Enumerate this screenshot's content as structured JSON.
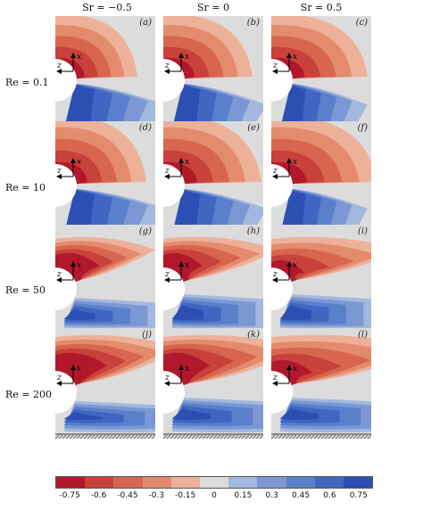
{
  "columns": [
    "Sr = −0.5",
    "Sr = 0",
    "Sr = 0.5"
  ],
  "rows": [
    "Re = 0.1",
    "Re = 10",
    "Re = 50",
    "Re = 200"
  ],
  "panels": [
    "(a)",
    "(b)",
    "(c)",
    "(d)",
    "(e)",
    "(f)",
    "(g)",
    "(h)",
    "(i)",
    "(j)",
    "(k)",
    "(l)"
  ],
  "axis_labels": {
    "x": "x",
    "z": "z"
  },
  "colorbar": {
    "ticks": [
      "-0.75",
      "-0.6",
      "-0.45",
      "-0.3",
      "-0.15",
      "0",
      "0.15",
      "0.3",
      "0.45",
      "0.6",
      "0.75"
    ],
    "colors": [
      "#b2182b",
      "#c8413b",
      "#d8664f",
      "#e48b6e",
      "#edb199",
      "#dcdcdc",
      "#a3b8de",
      "#7b98d4",
      "#5a7fcb",
      "#4066c2",
      "#2d4fb4"
    ]
  }
}
